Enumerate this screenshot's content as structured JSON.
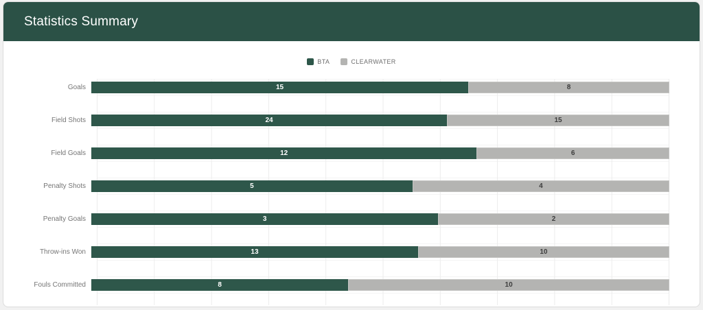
{
  "header": {
    "title": "Statistics Summary"
  },
  "colors": {
    "page_bg": "#f1f1f1",
    "card_bg": "#ffffff",
    "header_green": "#2b5146",
    "bta_green": "#2e574a",
    "clearwater_gray": "#b4b4b2"
  },
  "chart_data": {
    "type": "bar",
    "variant": "horizontal_stacked_100_percent",
    "title": "Statistics Summary",
    "categories": [
      "Goals",
      "Field Shots",
      "Field Goals",
      "Penalty Shots",
      "Penalty Goals",
      "Throw-ins Won",
      "Fouls Committed"
    ],
    "series": [
      {
        "name": "BTA",
        "color": "#2e574a",
        "values": [
          15,
          24,
          12,
          5,
          3,
          13,
          8
        ]
      },
      {
        "name": "CLEARWATER",
        "color": "#b4b4b2",
        "values": [
          8,
          15,
          6,
          4,
          2,
          10,
          10
        ]
      }
    ],
    "legend_position": "top",
    "grid": true,
    "value_labels": "centered-in-segment",
    "xlabel": "",
    "ylabel": ""
  }
}
